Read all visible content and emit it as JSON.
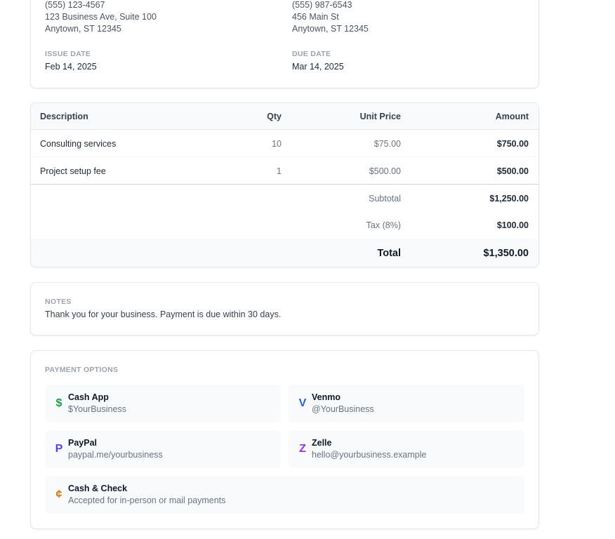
{
  "sender": {
    "phone": "(555) 123-4567",
    "address1": "123 Business Ave, Suite 100",
    "address2": "Anytown, ST 12345"
  },
  "client": {
    "phone": "(555) 987-6543",
    "address1": "456 Main St",
    "address2": "Anytown, ST 12345"
  },
  "dates": {
    "issue_label": "ISSUE DATE",
    "issue_value": "Feb 14, 2025",
    "due_label": "DUE DATE",
    "due_value": "Mar 14, 2025"
  },
  "table": {
    "headers": {
      "description": "Description",
      "qty": "Qty",
      "unit_price": "Unit Price",
      "amount": "Amount"
    },
    "items": [
      {
        "description": "Consulting services",
        "qty": "10",
        "unit_price": "$75.00",
        "amount": "$750.00"
      },
      {
        "description": "Project setup fee",
        "qty": "1",
        "unit_price": "$500.00",
        "amount": "$500.00"
      }
    ],
    "subtotal_label": "Subtotal",
    "subtotal_value": "$1,250.00",
    "tax_label": "Tax (8%)",
    "tax_value": "$100.00",
    "total_label": "Total",
    "total_value": "$1,350.00"
  },
  "notes": {
    "label": "NOTES",
    "text": "Thank you for your business. Payment is due within 30 days."
  },
  "payment": {
    "label": "PAYMENT OPTIONS",
    "options": [
      {
        "icon": "$",
        "icon_name": "dollar-icon",
        "icon_color": "#16a34a",
        "name": "Cash App",
        "detail": "$YourBusiness"
      },
      {
        "icon": "V",
        "icon_name": "venmo-icon",
        "icon_color": "#2563eb",
        "name": "Venmo",
        "detail": "@YourBusiness"
      },
      {
        "icon": "P",
        "icon_name": "paypal-icon",
        "icon_color": "#4f46e5",
        "name": "PayPal",
        "detail": "paypal.me/yourbusiness"
      },
      {
        "icon": "Z",
        "icon_name": "zelle-icon",
        "icon_color": "#9333ea",
        "name": "Zelle",
        "detail": "hello@yourbusiness.example"
      },
      {
        "icon": "¢",
        "icon_name": "cent-icon",
        "icon_color": "#d97706",
        "name": "Cash & Check",
        "detail": "Accepted for in-person or mail payments"
      }
    ]
  }
}
